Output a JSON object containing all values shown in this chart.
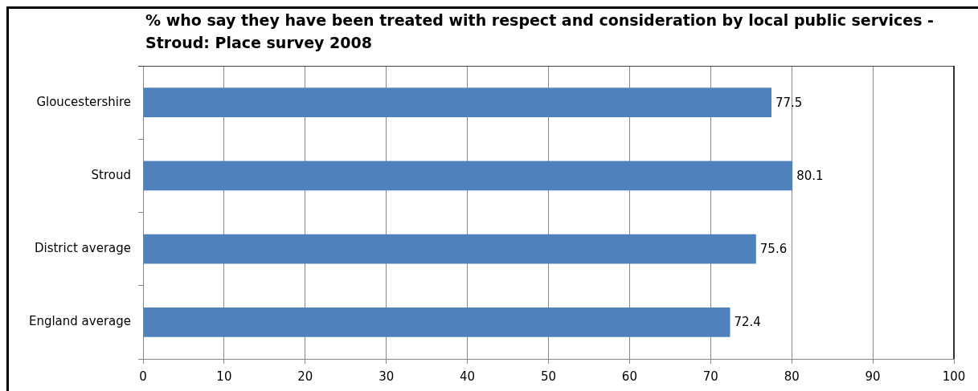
{
  "chart_data": {
    "type": "bar",
    "orientation": "horizontal",
    "title": "% who say they have been treated with respect and consideration by local public services - Stroud: Place survey 2008",
    "categories": [
      "Gloucestershire",
      "Stroud",
      "District average",
      "England average"
    ],
    "values": [
      77.5,
      80.1,
      75.6,
      72.4
    ],
    "color": "#4f81bd",
    "xlim": [
      0,
      100
    ],
    "xticks": [
      0,
      10,
      20,
      30,
      40,
      50,
      60,
      70,
      80,
      90,
      100
    ],
    "grid": "x",
    "data_labels": true
  }
}
